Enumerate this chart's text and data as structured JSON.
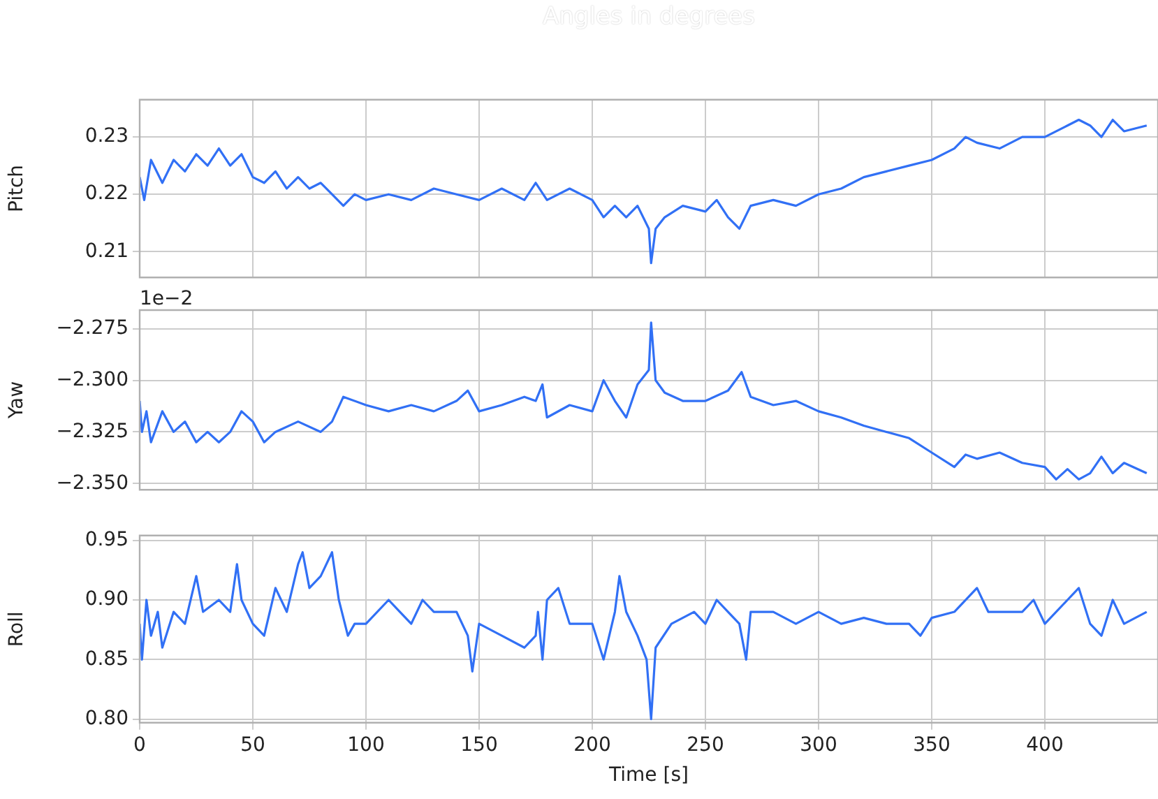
{
  "chart_data": [
    {
      "type": "line",
      "title": "Angles in degrees",
      "ylabel": "Pitch",
      "color": "#3170f5",
      "grid": true,
      "tick_labels": "y",
      "marker": "none",
      "line_style": "solid",
      "x": [
        0,
        2,
        5,
        10,
        15,
        20,
        25,
        30,
        35,
        40,
        45,
        50,
        55,
        60,
        65,
        70,
        75,
        80,
        85,
        90,
        95,
        100,
        110,
        120,
        130,
        140,
        150,
        160,
        170,
        175,
        180,
        190,
        200,
        205,
        210,
        215,
        220,
        225,
        226,
        228,
        232,
        240,
        250,
        255,
        260,
        265,
        270,
        280,
        290,
        300,
        310,
        320,
        330,
        340,
        350,
        360,
        365,
        370,
        380,
        390,
        400,
        410,
        415,
        420,
        425,
        430,
        435,
        445
      ],
      "values": [
        0.223,
        0.219,
        0.226,
        0.222,
        0.226,
        0.224,
        0.227,
        0.225,
        0.228,
        0.225,
        0.227,
        0.223,
        0.222,
        0.224,
        0.221,
        0.223,
        0.221,
        0.222,
        0.22,
        0.218,
        0.22,
        0.219,
        0.22,
        0.219,
        0.221,
        0.22,
        0.219,
        0.221,
        0.219,
        0.222,
        0.219,
        0.221,
        0.219,
        0.216,
        0.218,
        0.216,
        0.218,
        0.214,
        0.208,
        0.214,
        0.216,
        0.218,
        0.217,
        0.219,
        0.216,
        0.214,
        0.218,
        0.219,
        0.218,
        0.22,
        0.221,
        0.223,
        0.224,
        0.225,
        0.226,
        0.228,
        0.23,
        0.229,
        0.228,
        0.23,
        0.23,
        0.232,
        0.233,
        0.232,
        0.23,
        0.233,
        0.231,
        0.232
      ],
      "xlim": [
        0,
        450
      ],
      "xticks": [
        0,
        50,
        100,
        150,
        200,
        250,
        300,
        350,
        400
      ],
      "ylim": [
        0.2055,
        0.2365
      ],
      "yticks": [
        {
          "value": 0.21,
          "label": "0.21"
        },
        {
          "value": 0.22,
          "label": "0.22"
        },
        {
          "value": 0.23,
          "label": "0.23"
        }
      ]
    },
    {
      "type": "line",
      "ylabel": "Yaw",
      "annotations": [
        "1e−2"
      ],
      "color": "#3170f5",
      "grid": true,
      "tick_labels": "y",
      "marker": "none",
      "line_style": "solid",
      "x": [
        0,
        1,
        3,
        5,
        10,
        15,
        20,
        25,
        30,
        35,
        40,
        45,
        50,
        55,
        60,
        70,
        80,
        85,
        90,
        100,
        110,
        120,
        130,
        140,
        145,
        150,
        160,
        170,
        175,
        178,
        180,
        190,
        200,
        205,
        210,
        215,
        220,
        225,
        226,
        228,
        232,
        240,
        250,
        260,
        266,
        270,
        280,
        290,
        300,
        310,
        320,
        330,
        340,
        350,
        360,
        365,
        370,
        380,
        390,
        400,
        405,
        410,
        415,
        420,
        425,
        430,
        435,
        445
      ],
      "values": [
        -2.31,
        -2.325,
        -2.315,
        -2.33,
        -2.315,
        -2.325,
        -2.32,
        -2.33,
        -2.325,
        -2.33,
        -2.325,
        -2.315,
        -2.32,
        -2.33,
        -2.325,
        -2.32,
        -2.325,
        -2.32,
        -2.308,
        -2.312,
        -2.315,
        -2.312,
        -2.315,
        -2.31,
        -2.305,
        -2.315,
        -2.312,
        -2.308,
        -2.31,
        -2.302,
        -2.318,
        -2.312,
        -2.315,
        -2.3,
        -2.31,
        -2.318,
        -2.302,
        -2.295,
        -2.272,
        -2.3,
        -2.306,
        -2.31,
        -2.31,
        -2.305,
        -2.296,
        -2.308,
        -2.312,
        -2.31,
        -2.315,
        -2.318,
        -2.322,
        -2.325,
        -2.328,
        -2.335,
        -2.342,
        -2.336,
        -2.338,
        -2.335,
        -2.34,
        -2.342,
        -2.348,
        -2.343,
        -2.348,
        -2.345,
        -2.337,
        -2.345,
        -2.34,
        -2.345
      ],
      "xlim": [
        0,
        450
      ],
      "xticks": [
        0,
        50,
        100,
        150,
        200,
        250,
        300,
        350,
        400
      ],
      "ylim": [
        -2.353,
        -2.266
      ],
      "yticks": [
        {
          "value": -2.35,
          "label": "−2.350"
        },
        {
          "value": -2.325,
          "label": "−2.325"
        },
        {
          "value": -2.3,
          "label": "−2.300"
        },
        {
          "value": -2.275,
          "label": "−2.275"
        }
      ]
    },
    {
      "type": "line",
      "ylabel": "Roll",
      "xlabel": "Time [s]",
      "color": "#3170f5",
      "grid": true,
      "marker": "none",
      "line_style": "solid",
      "x": [
        0,
        1,
        3,
        5,
        8,
        10,
        15,
        20,
        25,
        28,
        35,
        40,
        43,
        45,
        50,
        55,
        60,
        65,
        70,
        72,
        75,
        80,
        85,
        88,
        92,
        95,
        100,
        110,
        115,
        120,
        125,
        130,
        140,
        145,
        147,
        150,
        160,
        170,
        175,
        176,
        178,
        180,
        185,
        190,
        200,
        205,
        210,
        212,
        215,
        220,
        224,
        226,
        228,
        235,
        245,
        250,
        255,
        260,
        265,
        268,
        270,
        280,
        290,
        300,
        310,
        320,
        330,
        340,
        345,
        350,
        360,
        370,
        375,
        380,
        390,
        395,
        400,
        410,
        415,
        420,
        425,
        430,
        435,
        445
      ],
      "values": [
        0.88,
        0.85,
        0.9,
        0.87,
        0.89,
        0.86,
        0.89,
        0.88,
        0.92,
        0.89,
        0.9,
        0.89,
        0.93,
        0.9,
        0.88,
        0.87,
        0.91,
        0.89,
        0.93,
        0.94,
        0.91,
        0.92,
        0.94,
        0.9,
        0.87,
        0.88,
        0.88,
        0.9,
        0.89,
        0.88,
        0.9,
        0.89,
        0.89,
        0.87,
        0.84,
        0.88,
        0.87,
        0.86,
        0.87,
        0.89,
        0.85,
        0.9,
        0.91,
        0.88,
        0.88,
        0.85,
        0.89,
        0.92,
        0.89,
        0.87,
        0.85,
        0.8,
        0.86,
        0.88,
        0.89,
        0.88,
        0.9,
        0.89,
        0.88,
        0.85,
        0.89,
        0.89,
        0.88,
        0.89,
        0.88,
        0.885,
        0.88,
        0.88,
        0.87,
        0.885,
        0.89,
        0.91,
        0.89,
        0.89,
        0.89,
        0.9,
        0.88,
        0.9,
        0.91,
        0.88,
        0.87,
        0.9,
        0.88,
        0.89
      ],
      "xlim": [
        0,
        450
      ],
      "xticks": [
        0,
        50,
        100,
        150,
        200,
        250,
        300,
        350,
        400
      ],
      "ylim": [
        0.797,
        0.954
      ],
      "yticks": [
        {
          "value": 0.8,
          "label": "0.80"
        },
        {
          "value": 0.85,
          "label": "0.85"
        },
        {
          "value": 0.9,
          "label": "0.90"
        },
        {
          "value": 0.95,
          "label": "0.95"
        }
      ]
    }
  ]
}
